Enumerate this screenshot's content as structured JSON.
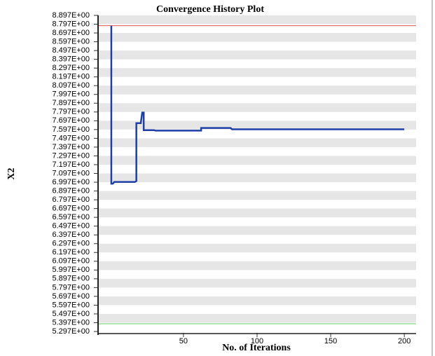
{
  "chart_data": {
    "type": "line",
    "title": "Convergence History Plot",
    "ylabel": "X2",
    "xlabel": "No. of Iterations",
    "xlim": [
      -8,
      208
    ],
    "xticks": [
      50,
      100,
      150,
      200
    ],
    "ylim": [
      5.297,
      8.897
    ],
    "yticks": [
      {
        "value": 5.297,
        "label": "5.297E+00"
      },
      {
        "value": 5.397,
        "label": "5.397E+00"
      },
      {
        "value": 5.497,
        "label": "5.497E+00"
      },
      {
        "value": 5.597,
        "label": "5.597E+00"
      },
      {
        "value": 5.697,
        "label": "5.697E+00"
      },
      {
        "value": 5.797,
        "label": "5.797E+00"
      },
      {
        "value": 5.897,
        "label": "5.897E+00"
      },
      {
        "value": 5.997,
        "label": "5.997E+00"
      },
      {
        "value": 6.097,
        "label": "6.097E+00"
      },
      {
        "value": 6.197,
        "label": "6.197E+00"
      },
      {
        "value": 6.297,
        "label": "6.297E+00"
      },
      {
        "value": 6.397,
        "label": "6.397E+00"
      },
      {
        "value": 6.497,
        "label": "6.497E+00"
      },
      {
        "value": 6.597,
        "label": "6.597E+00"
      },
      {
        "value": 6.697,
        "label": "6.697E+00"
      },
      {
        "value": 6.797,
        "label": "6.797E+00"
      },
      {
        "value": 6.897,
        "label": "6.897E+00"
      },
      {
        "value": 6.997,
        "label": "6.997E+00"
      },
      {
        "value": 7.097,
        "label": "7.097E+00"
      },
      {
        "value": 7.197,
        "label": "7.197E+00"
      },
      {
        "value": 7.297,
        "label": "7.297E+00"
      },
      {
        "value": 7.397,
        "label": "7.397E+00"
      },
      {
        "value": 7.497,
        "label": "7.497E+00"
      },
      {
        "value": 7.597,
        "label": "7.597E+00"
      },
      {
        "value": 7.697,
        "label": "7.697E+00"
      },
      {
        "value": 7.797,
        "label": "7.797E+00"
      },
      {
        "value": 7.897,
        "label": "7.897E+00"
      },
      {
        "value": 7.997,
        "label": "7.997E+00"
      },
      {
        "value": 8.097,
        "label": "8.097E+00"
      },
      {
        "value": 8.197,
        "label": "8.197E+00"
      },
      {
        "value": 8.297,
        "label": "8.297E+00"
      },
      {
        "value": 8.397,
        "label": "8.397E+00"
      },
      {
        "value": 8.497,
        "label": "8.497E+00"
      },
      {
        "value": 8.597,
        "label": "8.597E+00"
      },
      {
        "value": 8.697,
        "label": "8.697E+00"
      },
      {
        "value": 8.797,
        "label": "8.797E+00"
      },
      {
        "value": 8.897,
        "label": "8.897E+00"
      }
    ],
    "grid_bands": true,
    "reference_lines": [
      {
        "value": 8.78,
        "color": "#e05050"
      },
      {
        "value": 5.385,
        "color": "#66cc66"
      }
    ],
    "series": [
      {
        "color": "#1f3fa8",
        "x": [
          1,
          1,
          2,
          3,
          17,
          18,
          18,
          21,
          22,
          23,
          23,
          30,
          31,
          62,
          62,
          82,
          83,
          200
        ],
        "values": [
          8.78,
          6.98,
          6.98,
          7.0,
          7.0,
          7.01,
          7.67,
          7.67,
          7.79,
          7.79,
          7.59,
          7.59,
          7.585,
          7.585,
          7.615,
          7.615,
          7.6,
          7.6
        ]
      }
    ]
  }
}
